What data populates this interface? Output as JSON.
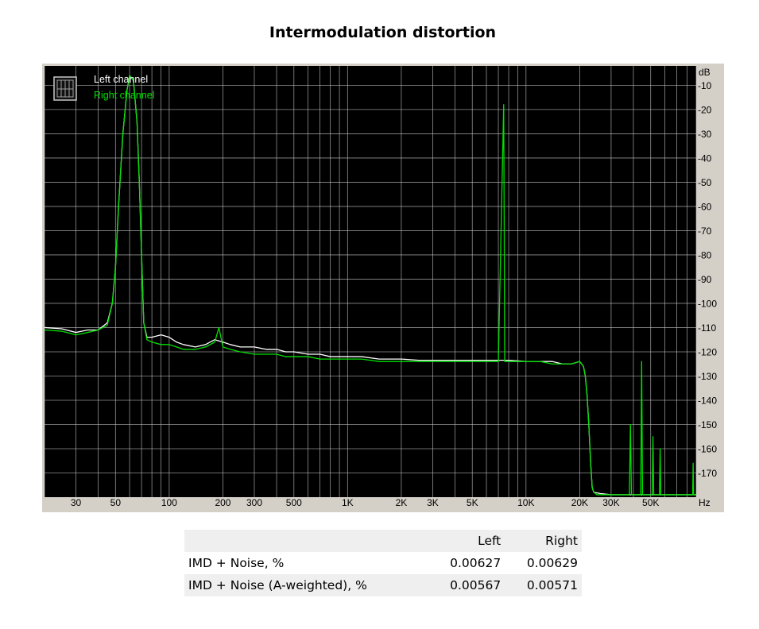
{
  "chart_data": {
    "type": "line",
    "title": "Intermodulation distortion",
    "xlabel": "Hz",
    "ylabel": "dB",
    "x_scale": "log",
    "xlim": [
      20,
      90000
    ],
    "ylim": [
      -180,
      -2
    ],
    "x_ticks": [
      {
        "value": 30,
        "label": "30"
      },
      {
        "value": 50,
        "label": "50"
      },
      {
        "value": 100,
        "label": "100"
      },
      {
        "value": 200,
        "label": "200"
      },
      {
        "value": 300,
        "label": "300"
      },
      {
        "value": 500,
        "label": "500"
      },
      {
        "value": 1000,
        "label": "1K"
      },
      {
        "value": 2000,
        "label": "2K"
      },
      {
        "value": 3000,
        "label": "3K"
      },
      {
        "value": 5000,
        "label": "5K"
      },
      {
        "value": 10000,
        "label": "10K"
      },
      {
        "value": 20000,
        "label": "20K"
      },
      {
        "value": 30000,
        "label": "30K"
      },
      {
        "value": 50000,
        "label": "50K"
      }
    ],
    "y_ticks": [
      -10,
      -20,
      -30,
      -40,
      -50,
      -60,
      -70,
      -80,
      -90,
      -100,
      -110,
      -120,
      -130,
      -140,
      -150,
      -160,
      -170
    ],
    "y_tick_labels": [
      "-10",
      "-20",
      "-30",
      "-40",
      "-50",
      "-60",
      "-70",
      "-80",
      "-90",
      "-100",
      "-110",
      "-120",
      "-130",
      "-140",
      "-150",
      "-160",
      "-170"
    ],
    "grid": true,
    "legend_placement": "top-left",
    "colors": {
      "background": "#000000",
      "frame": "#d4d0c8",
      "grid": "#c0c0c0",
      "left": "#ffffff",
      "right": "#00e000"
    },
    "series": [
      {
        "name": "Left channel",
        "color": "#ffffff",
        "points": [
          [
            20,
            -110
          ],
          [
            25,
            -110.5
          ],
          [
            30,
            -112
          ],
          [
            35,
            -111
          ],
          [
            40,
            -111
          ],
          [
            45,
            -108
          ],
          [
            48,
            -100
          ],
          [
            50,
            -85
          ],
          [
            52,
            -60
          ],
          [
            55,
            -30
          ],
          [
            58,
            -12
          ],
          [
            60,
            -6
          ],
          [
            63,
            -8
          ],
          [
            66,
            -25
          ],
          [
            68,
            -50
          ],
          [
            70,
            -80
          ],
          [
            72,
            -108
          ],
          [
            75,
            -114
          ],
          [
            80,
            -114
          ],
          [
            90,
            -113
          ],
          [
            100,
            -114
          ],
          [
            110,
            -116
          ],
          [
            120,
            -117
          ],
          [
            140,
            -118
          ],
          [
            160,
            -117
          ],
          [
            180,
            -115
          ],
          [
            200,
            -116
          ],
          [
            220,
            -117
          ],
          [
            250,
            -118
          ],
          [
            300,
            -118
          ],
          [
            350,
            -119
          ],
          [
            400,
            -119
          ],
          [
            450,
            -120
          ],
          [
            500,
            -120
          ],
          [
            600,
            -121
          ],
          [
            700,
            -121
          ],
          [
            800,
            -122
          ],
          [
            1000,
            -122
          ],
          [
            1200,
            -122
          ],
          [
            1500,
            -123
          ],
          [
            2000,
            -123
          ],
          [
            2500,
            -123.5
          ],
          [
            3000,
            -123.5
          ],
          [
            4000,
            -123.5
          ],
          [
            5000,
            -123.5
          ],
          [
            6000,
            -123.5
          ],
          [
            7000,
            -123.5
          ],
          [
            8000,
            -123.5
          ],
          [
            10000,
            -124
          ],
          [
            12000,
            -124
          ],
          [
            14000,
            -124
          ],
          [
            16000,
            -125
          ],
          [
            18000,
            -125
          ],
          [
            20000,
            -124
          ],
          [
            21000,
            -126
          ],
          [
            21500,
            -130
          ],
          [
            22000,
            -138
          ],
          [
            22500,
            -150
          ],
          [
            23000,
            -165
          ],
          [
            23500,
            -176
          ],
          [
            24000,
            -178
          ],
          [
            26000,
            -178.5
          ],
          [
            30000,
            -179
          ],
          [
            40000,
            -179
          ],
          [
            50000,
            -179
          ],
          [
            60000,
            -179
          ],
          [
            70000,
            -179
          ],
          [
            80000,
            -179
          ],
          [
            90000,
            -179
          ]
        ]
      },
      {
        "name": "Right channel",
        "color": "#00e000",
        "points": [
          [
            20,
            -111
          ],
          [
            25,
            -111.5
          ],
          [
            30,
            -113
          ],
          [
            35,
            -112
          ],
          [
            40,
            -111
          ],
          [
            45,
            -109
          ],
          [
            48,
            -100
          ],
          [
            50,
            -85
          ],
          [
            52,
            -60
          ],
          [
            55,
            -30
          ],
          [
            58,
            -12
          ],
          [
            60,
            -6
          ],
          [
            63,
            -8
          ],
          [
            66,
            -25
          ],
          [
            68,
            -50
          ],
          [
            70,
            -80
          ],
          [
            72,
            -108
          ],
          [
            75,
            -115
          ],
          [
            80,
            -116
          ],
          [
            90,
            -117
          ],
          [
            100,
            -117
          ],
          [
            110,
            -118
          ],
          [
            120,
            -119
          ],
          [
            140,
            -119
          ],
          [
            160,
            -118
          ],
          [
            180,
            -116
          ],
          [
            190,
            -110
          ],
          [
            200,
            -118
          ],
          [
            220,
            -119
          ],
          [
            250,
            -120
          ],
          [
            300,
            -121
          ],
          [
            350,
            -121
          ],
          [
            400,
            -121
          ],
          [
            450,
            -122
          ],
          [
            500,
            -122
          ],
          [
            600,
            -122
          ],
          [
            700,
            -123
          ],
          [
            800,
            -123
          ],
          [
            1000,
            -123
          ],
          [
            1200,
            -123
          ],
          [
            1500,
            -124
          ],
          [
            2000,
            -124
          ],
          [
            2500,
            -124
          ],
          [
            3000,
            -124
          ],
          [
            4000,
            -124
          ],
          [
            5000,
            -124
          ],
          [
            6000,
            -124
          ],
          [
            7000,
            -124
          ],
          [
            7500,
            -18
          ],
          [
            7600,
            -124
          ],
          [
            8000,
            -124
          ],
          [
            10000,
            -124
          ],
          [
            12000,
            -124
          ],
          [
            14000,
            -125
          ],
          [
            16000,
            -125
          ],
          [
            18000,
            -125
          ],
          [
            20000,
            -124
          ],
          [
            21000,
            -126
          ],
          [
            21500,
            -130
          ],
          [
            22000,
            -138
          ],
          [
            22500,
            -150
          ],
          [
            23000,
            -165
          ],
          [
            23500,
            -176
          ],
          [
            24000,
            -178
          ],
          [
            25000,
            -179
          ],
          [
            30000,
            -179
          ],
          [
            38000,
            -179
          ],
          [
            38500,
            -150
          ],
          [
            39000,
            -179
          ],
          [
            44000,
            -179
          ],
          [
            44500,
            -124
          ],
          [
            45000,
            -179
          ],
          [
            51000,
            -179
          ],
          [
            51500,
            -155
          ],
          [
            52000,
            -179
          ],
          [
            56000,
            -179
          ],
          [
            56500,
            -160
          ],
          [
            57000,
            -179
          ],
          [
            70000,
            -179
          ],
          [
            80000,
            -179
          ],
          [
            86000,
            -179
          ],
          [
            86500,
            -166
          ],
          [
            87000,
            -179
          ],
          [
            90000,
            -179
          ]
        ]
      }
    ]
  },
  "results": {
    "headers": [
      "",
      "Left",
      "Right"
    ],
    "rows": [
      {
        "label": "IMD + Noise, %",
        "left": "0.00627",
        "right": "0.00629"
      },
      {
        "label": "IMD + Noise (A-weighted), %",
        "left": "0.00567",
        "right": "0.00571"
      }
    ]
  }
}
